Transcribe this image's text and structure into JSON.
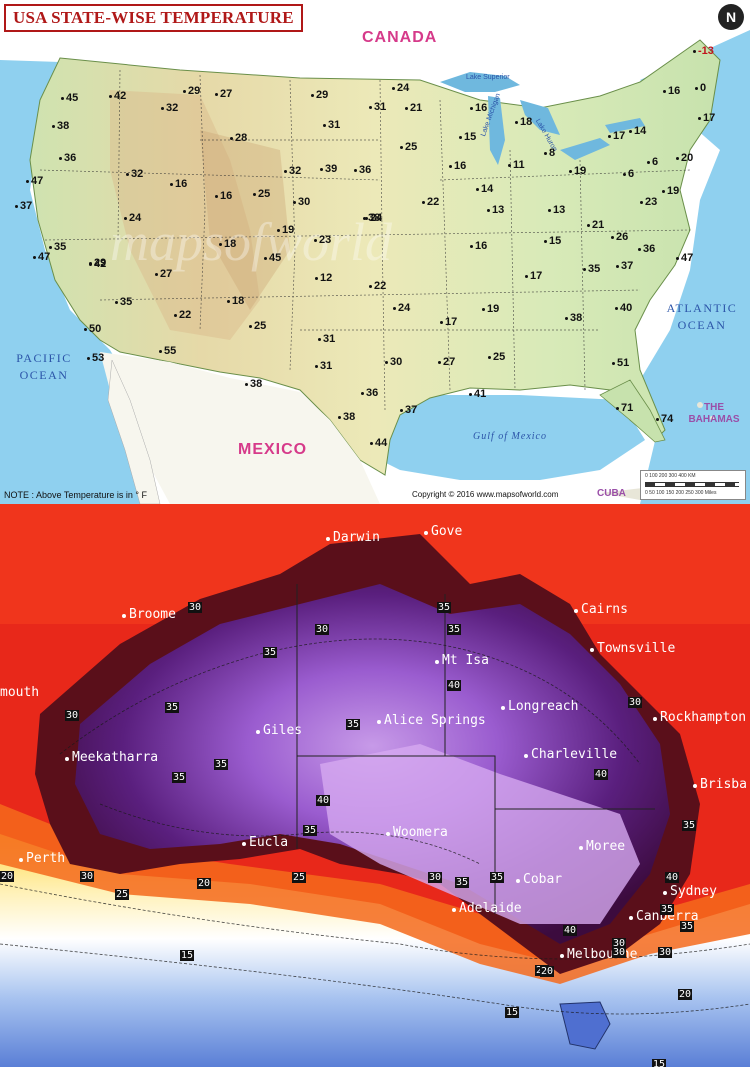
{
  "usa_map": {
    "title": "USA STATE-WISE TEMPERATURE",
    "compass": "N",
    "labels": {
      "canada": "CANADA",
      "mexico": "MEXICO",
      "pacific_ocean": [
        "PACIFIC",
        "OCEAN"
      ],
      "atlantic_ocean": [
        "ATLANTIC",
        "OCEAN"
      ],
      "gulf": "Gulf of Mexico",
      "bahamas": [
        "THE",
        "BAHAMAS"
      ],
      "cuba": "CUBA",
      "lake_superior": "Lake Superior",
      "lake_michigan": "Lake Michigan",
      "lake_huron": "Lake Huron"
    },
    "note": "NOTE : Above Temperature is in ° F",
    "copyright": "Copyright © 2016 www.mapsofworld.com",
    "scale_top": "0   100  200  300  400 KM",
    "scale_bottom": "0   50  100  150  200  250  300 Miles",
    "temperatures": [
      "-13",
      "16",
      "0",
      "17",
      "20",
      "6",
      "14",
      "17",
      "19",
      "8",
      "6",
      "23",
      "19",
      "24",
      "21",
      "16",
      "18",
      "15",
      "25",
      "11",
      "31",
      "16",
      "14",
      "22",
      "13",
      "13",
      "21",
      "26",
      "36",
      "47",
      "37",
      "35",
      "23",
      "24",
      "15",
      "16",
      "17",
      "19",
      "40",
      "38",
      "17",
      "24",
      "22",
      "12",
      "31",
      "31",
      "30",
      "27",
      "25",
      "41",
      "51",
      "71",
      "74",
      "44",
      "37",
      "36",
      "38",
      "38",
      "55",
      "25",
      "22",
      "18",
      "35",
      "50",
      "53",
      "27",
      "29",
      "35",
      "47",
      "37",
      "47",
      "36",
      "38",
      "45",
      "42",
      "32",
      "29",
      "27",
      "28",
      "32",
      "16",
      "16",
      "25",
      "32",
      "39",
      "36",
      "30",
      "38",
      "24",
      "18",
      "19",
      "45",
      "42",
      "29",
      "31"
    ]
  },
  "aus_map": {
    "cities": [
      "Darwin",
      "Gove",
      "Broome",
      "Cairns",
      "Townsville",
      "Mt Isa",
      "mouth",
      "Giles",
      "Alice Springs",
      "Longreach",
      "Rockhampton",
      "Meekatharra",
      "Charleville",
      "Brisba",
      "Woomera",
      "Moree",
      "Eucla",
      "Cobar",
      "Perth",
      "Sydney",
      "Adelaide",
      "Canberra",
      "Melbourne"
    ],
    "contours": [
      "30",
      "30",
      "35",
      "35",
      "35",
      "30",
      "35",
      "35",
      "40",
      "30",
      "35",
      "35",
      "40",
      "30",
      "35",
      "40",
      "35",
      "30",
      "25",
      "35",
      "25",
      "20",
      "20",
      "20",
      "30",
      "35",
      "30",
      "35",
      "40",
      "40",
      "35",
      "30",
      "20",
      "15",
      "15",
      "20",
      "15"
    ]
  }
}
